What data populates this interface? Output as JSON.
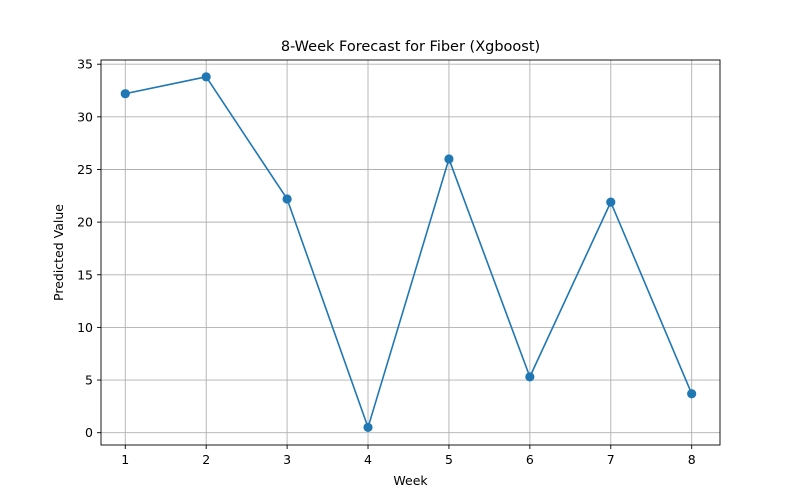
{
  "chart_data": {
    "type": "line",
    "title": "8-Week Forecast for Fiber (Xgboost)",
    "xlabel": "Week",
    "ylabel": "Predicted Value",
    "x": [
      1,
      2,
      3,
      4,
      5,
      6,
      7,
      8
    ],
    "series": [
      {
        "values": [
          32.2,
          33.8,
          22.2,
          0.5,
          26.0,
          5.3,
          21.9,
          3.7
        ],
        "color": "#1f77b4",
        "marker": "circle"
      }
    ],
    "xticks": [
      "1",
      "2",
      "3",
      "4",
      "5",
      "6",
      "7",
      "8"
    ],
    "yticks": [
      "0",
      "5",
      "10",
      "15",
      "20",
      "25",
      "30",
      "35"
    ],
    "xlim": [
      0.7,
      8.35
    ],
    "ylim": [
      -1.17,
      35.4
    ],
    "grid": true
  }
}
